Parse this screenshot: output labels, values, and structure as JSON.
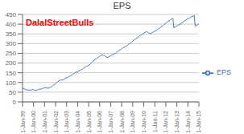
{
  "chart_data": {
    "type": "line",
    "title": "EPS",
    "annotations": [
      {
        "text": "DalalStreetBulls",
        "color": "#FF0000"
      }
    ],
    "legend": "right",
    "grid": "y",
    "xlim": [
      0,
      16
    ],
    "xticks": [
      {
        "value": 0,
        "label": "1-Jan-99"
      },
      {
        "value": 1,
        "label": "1-Jan-00"
      },
      {
        "value": 2,
        "label": "1-Jan-01"
      },
      {
        "value": 3,
        "label": "1-Jan-02"
      },
      {
        "value": 4,
        "label": "1-Jan-03"
      },
      {
        "value": 5,
        "label": "1-Jan-04"
      },
      {
        "value": 6,
        "label": "1-Jan-05"
      },
      {
        "value": 7,
        "label": "1-Jan-06"
      },
      {
        "value": 8,
        "label": "1-Jan-07"
      },
      {
        "value": 9,
        "label": "1-Jan-08"
      },
      {
        "value": 10,
        "label": "1-Jan-09"
      },
      {
        "value": 11,
        "label": "1-Jan-10"
      },
      {
        "value": 12,
        "label": "1-Jan-11"
      },
      {
        "value": 13,
        "label": "1-Jan-12"
      },
      {
        "value": 14,
        "label": "1-Jan-13"
      },
      {
        "value": 15,
        "label": "1-Jan-14"
      },
      {
        "value": 16,
        "label": "1-Jan-15"
      }
    ],
    "ylim": [
      0,
      450
    ],
    "yticks": [
      0,
      50,
      100,
      150,
      200,
      250,
      300,
      350,
      400,
      450
    ],
    "x": [
      0,
      0.0842,
      0.1684,
      0.2526,
      0.3368,
      0.4211,
      0.5053,
      0.5895,
      0.6737,
      0.7579,
      0.8421,
      0.9263,
      1.0105,
      1.0947,
      1.1789,
      1.2632,
      1.3474,
      1.4316,
      1.5158,
      1.6,
      1.6842,
      1.7684,
      1.8526,
      1.9368,
      2.0211,
      2.1053,
      2.1895,
      2.2737,
      2.3579,
      2.4421,
      2.5263,
      2.6105,
      2.6947,
      2.7789,
      2.8632,
      2.9474,
      3.0316,
      3.1158,
      3.2,
      3.2842,
      3.3684,
      3.4526,
      3.5368,
      3.6211,
      3.7053,
      3.7895,
      3.8737,
      3.9579,
      4.0421,
      4.1263,
      4.2105,
      4.2947,
      4.3789,
      4.4632,
      4.5474,
      4.6316,
      4.7158,
      4.8,
      4.8842,
      4.9684,
      5.0526,
      5.1368,
      5.2211,
      5.3053,
      5.3895,
      5.4737,
      5.5579,
      5.6421,
      5.7263,
      5.8105,
      5.8947,
      5.9789,
      6.0632,
      6.1474,
      6.2316,
      6.3158,
      6.4,
      6.4842,
      6.5684,
      6.6526,
      6.7368,
      6.8211,
      6.9053,
      6.9895,
      7.0737,
      7.1579,
      7.2421,
      7.3263,
      7.4105,
      7.4947,
      7.5789,
      7.6632,
      7.7474,
      7.8316,
      7.9158,
      8,
      8.0842,
      8.1684,
      8.2526,
      8.3368,
      8.4211,
      8.5053,
      8.5895,
      8.6737,
      8.7579,
      8.8421,
      8.9263,
      9.0105,
      9.0947,
      9.1789,
      9.2632,
      9.3474,
      9.4316,
      9.5158,
      9.6,
      9.6842,
      9.7684,
      9.8526,
      9.9368,
      10.0211,
      10.1053,
      10.1895,
      10.2737,
      10.3579,
      10.4421,
      10.5263,
      10.6105,
      10.6947,
      10.7789,
      10.8632,
      10.9474,
      11.0316,
      11.1158,
      11.2,
      11.2842,
      11.3684,
      11.4526,
      11.5368,
      11.6211,
      11.7053,
      11.7895,
      11.8737,
      11.9579,
      12.0421,
      12.1263,
      12.2105,
      12.2947,
      12.3789,
      12.4632,
      12.5474,
      12.6316,
      12.7158,
      12.8,
      12.8842,
      12.9684,
      13.0526,
      13.1368,
      13.2211,
      13.3053,
      13.3895,
      13.4737,
      13.5579,
      13.6421,
      13.7263,
      13.8105,
      13.8947,
      13.9789,
      14.0632,
      14.1474,
      14.2316,
      14.3158,
      14.4,
      14.4842,
      14.5684,
      14.6526,
      14.7368,
      14.8211,
      14.9053,
      14.9895,
      15.0737,
      15.1579,
      15.2421,
      15.3263,
      15.4105,
      15.4947,
      15.5789,
      15.6632,
      15.7474,
      15.8316,
      15.9158,
      16
    ],
    "series": [
      {
        "name": "EPS",
        "color": "#4472C4",
        "values": [
          70,
          68,
          67,
          65,
          63,
          62,
          60,
          62,
          60,
          61,
          62,
          65,
          63,
          60,
          58,
          60,
          62,
          63,
          65,
          67,
          65,
          68,
          70,
          72,
          75,
          73,
          72,
          70,
          72,
          74,
          75,
          78,
          80,
          85,
          90,
          92,
          95,
          100,
          105,
          108,
          110,
          112,
          115,
          113,
          115,
          118,
          120,
          125,
          123,
          128,
          130,
          132,
          135,
          138,
          140,
          145,
          148,
          150,
          155,
          153,
          158,
          160,
          163,
          165,
          168,
          170,
          175,
          178,
          180,
          182,
          185,
          188,
          190,
          195,
          200,
          205,
          210,
          215,
          218,
          220,
          225,
          228,
          230,
          235,
          238,
          240,
          242,
          240,
          238,
          235,
          232,
          230,
          228,
          232,
          235,
          238,
          240,
          242,
          245,
          248,
          250,
          255,
          258,
          260,
          265,
          268,
          270,
          275,
          278,
          280,
          282,
          285,
          288,
          290,
          295,
          298,
          300,
          305,
          310,
          315,
          318,
          320,
          325,
          328,
          330,
          335,
          340,
          342,
          345,
          348,
          350,
          355,
          358,
          360,
          362,
          358,
          355,
          352,
          350,
          355,
          358,
          360,
          362,
          365,
          368,
          370,
          375,
          378,
          380,
          385,
          388,
          390,
          395,
          400,
          405,
          408,
          410,
          415,
          418,
          420,
          425,
          428,
          430,
          382,
          385,
          388,
          390,
          392,
          395,
          398,
          400,
          405,
          408,
          410,
          415,
          418,
          420,
          425,
          428,
          430,
          432,
          435,
          438,
          440,
          442,
          445,
          390,
          392,
          395,
          398,
          400
        ]
      }
    ]
  }
}
